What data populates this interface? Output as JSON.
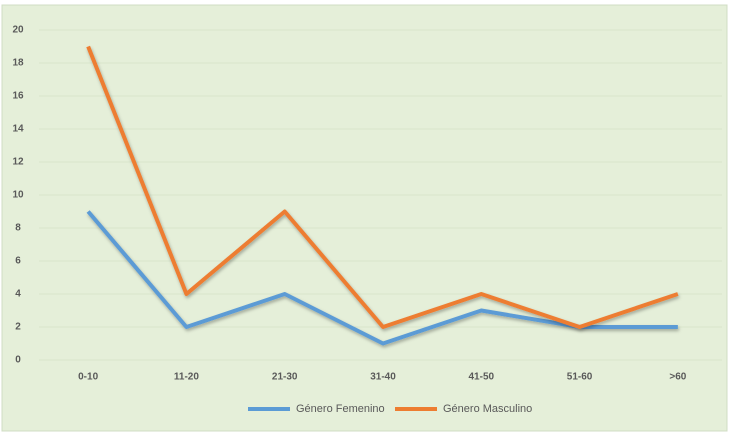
{
  "chart_data": {
    "type": "line",
    "categories": [
      "0-10",
      "11-20",
      "21-30",
      "31-40",
      "41-50",
      "51-60",
      ">60"
    ],
    "series": [
      {
        "name": "Género Femenino",
        "color": "#5b9bd5",
        "values": [
          9,
          2,
          4,
          1,
          3,
          2,
          2
        ]
      },
      {
        "name": "Género Masculino",
        "color": "#ed7d31",
        "values": [
          19,
          4,
          9,
          2,
          4,
          2,
          4
        ]
      }
    ],
    "ylim": [
      0,
      20
    ],
    "yticks": [
      0,
      2,
      4,
      6,
      8,
      10,
      12,
      14,
      16,
      18,
      20
    ],
    "grid": true,
    "legend": "bottom"
  }
}
